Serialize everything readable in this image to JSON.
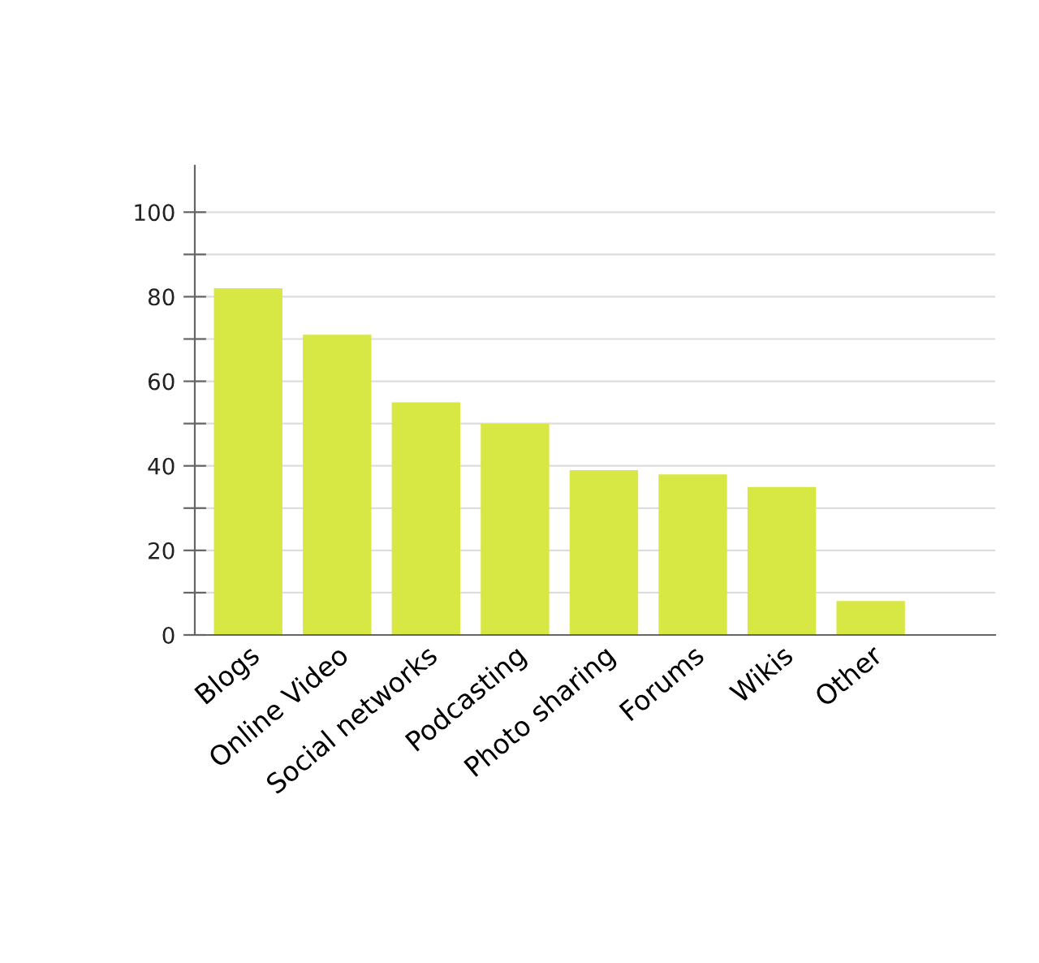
{
  "chart_data": {
    "type": "bar",
    "categories": [
      "Blogs",
      "Online Video",
      "Social networks",
      "Podcasting",
      "Photo sharing",
      "Forums",
      "Wikis",
      "Other"
    ],
    "values": [
      82,
      71,
      55,
      50,
      39,
      38,
      35,
      8
    ],
    "color": "#d7e743",
    "ylim": [
      0,
      111
    ],
    "yticks": [
      0,
      {
        "value": 10,
        "label": null
      },
      20,
      {
        "value": 30,
        "label": null
      },
      40,
      {
        "value": 50,
        "label": null
      },
      60,
      {
        "value": 70,
        "label": null
      },
      80,
      {
        "value": 90,
        "label": null
      },
      100
    ],
    "grid": "y"
  }
}
